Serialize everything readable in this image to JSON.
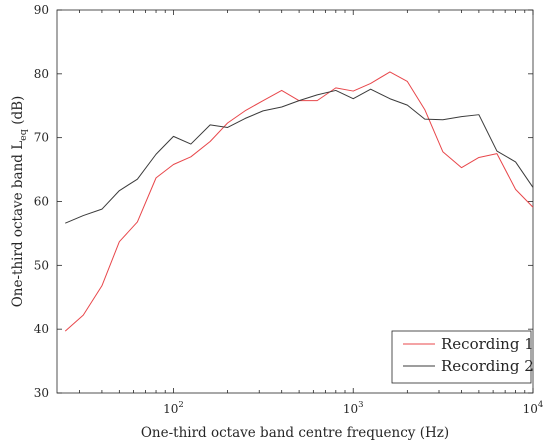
{
  "chart_data": {
    "type": "line",
    "xlabel": "One-third octave band centre frequency (Hz)",
    "ylabel_main": "One-third octave band L",
    "ylabel_sub": "eq",
    "ylabel_suffix": " (dB)",
    "xscale": "log",
    "xlim": [
      22.5,
      10000
    ],
    "ylim": [
      30,
      90
    ],
    "yticks": [
      30,
      40,
      50,
      60,
      70,
      80,
      90
    ],
    "xticks": [
      {
        "value": 100,
        "base": "10",
        "exp": "2"
      },
      {
        "value": 1000,
        "base": "10",
        "exp": "3"
      },
      {
        "value": 10000,
        "base": "10",
        "exp": "4"
      }
    ],
    "grid": false,
    "legend_position": "bottom-right",
    "x": [
      25,
      31.5,
      40,
      50,
      63,
      80,
      100,
      125,
      160,
      200,
      250,
      315,
      400,
      500,
      630,
      800,
      1000,
      1250,
      1600,
      2000,
      2500,
      3150,
      4000,
      5000,
      6300,
      8000,
      10000
    ],
    "series": [
      {
        "name": "Recording 1",
        "color": "#e8474b",
        "values": [
          39.7,
          42.2,
          46.8,
          53.7,
          56.8,
          63.7,
          65.8,
          67.0,
          69.4,
          72.3,
          74.2,
          75.8,
          77.4,
          75.8,
          75.8,
          77.8,
          77.3,
          78.5,
          80.3,
          78.8,
          74.4,
          67.8,
          65.3,
          66.9,
          67.5,
          61.9,
          59.1
        ]
      },
      {
        "name": "Recording 2",
        "color": "#3b3b3b",
        "values": [
          56.6,
          57.8,
          58.8,
          61.7,
          63.5,
          67.4,
          70.2,
          69.0,
          72.0,
          71.6,
          73.0,
          74.2,
          74.8,
          75.8,
          76.7,
          77.4,
          76.1,
          77.6,
          76.1,
          75.1,
          72.9,
          72.8,
          73.3,
          73.6,
          67.9,
          66.2,
          62.2
        ]
      }
    ]
  }
}
